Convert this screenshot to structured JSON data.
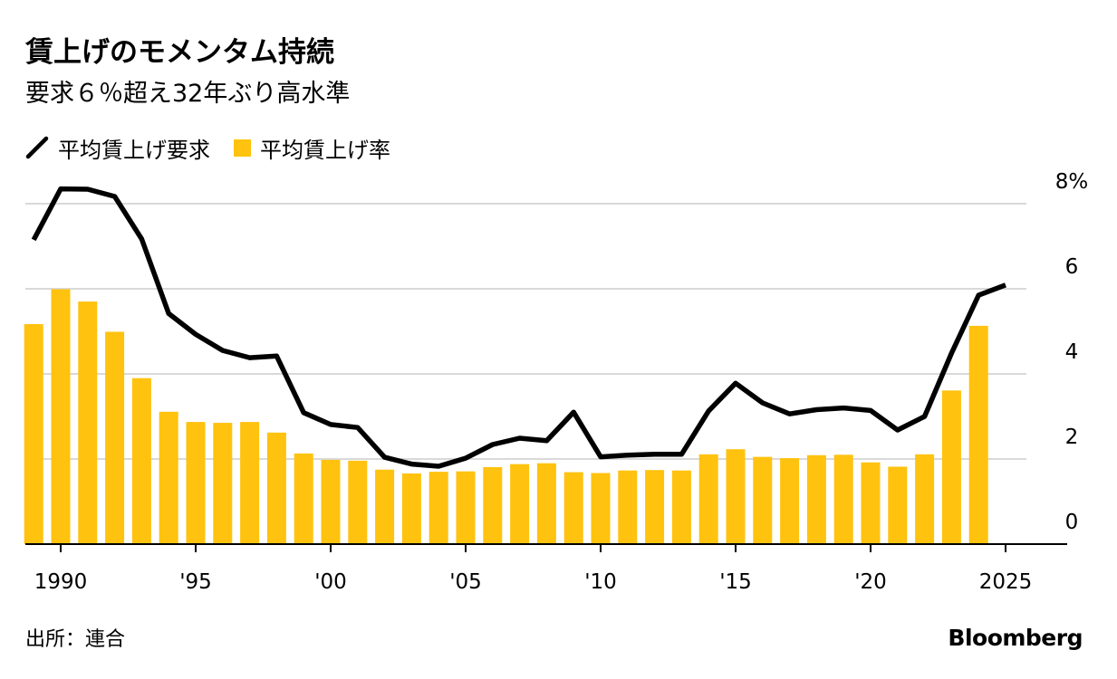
{
  "title": "賃上げのモメンタム持続",
  "subtitle": "要求６％超え32年ぶり高水準",
  "legend": {
    "line_label": "平均賃上げ要求",
    "bar_label": "平均賃上げ率"
  },
  "source": "出所：連合",
  "brand": "Bloomberg",
  "colors": {
    "bar": "#FFC20E",
    "line": "#000000",
    "grid": "#d9d9d9"
  },
  "chart_data": {
    "type": "bar",
    "title": "賃上げのモメンタム持続",
    "subtitle": "要求６％超え32年ぶり高水準",
    "xlabel": "",
    "ylabel": "",
    "ylim": [
      0,
      8
    ],
    "y_ticks": [
      0,
      2,
      4,
      6,
      8
    ],
    "y_tick_labels": [
      "0",
      "2",
      "4",
      "6",
      "8%"
    ],
    "x_range": [
      1989,
      2025
    ],
    "x_ticks": [
      1990,
      1995,
      2000,
      2005,
      2010,
      2015,
      2020,
      2025
    ],
    "x_tick_labels": [
      "1990",
      "'95",
      "'00",
      "'05",
      "'10",
      "'15",
      "'20",
      "2025"
    ],
    "grid": true,
    "legend_position": "top-left",
    "series": [
      {
        "name": "平均賃上げ率",
        "type": "bar",
        "x": [
          1989,
          1990,
          1991,
          1992,
          1993,
          1994,
          1995,
          1996,
          1997,
          1998,
          1999,
          2000,
          2001,
          2002,
          2003,
          2004,
          2005,
          2006,
          2007,
          2008,
          2009,
          2010,
          2011,
          2012,
          2013,
          2014,
          2015,
          2016,
          2017,
          2018,
          2019,
          2020,
          2021,
          2022,
          2023,
          2024
        ],
        "values": [
          5.17,
          5.99,
          5.7,
          4.99,
          3.9,
          3.11,
          2.87,
          2.85,
          2.87,
          2.62,
          2.13,
          1.98,
          1.96,
          1.75,
          1.66,
          1.7,
          1.71,
          1.81,
          1.88,
          1.9,
          1.69,
          1.67,
          1.73,
          1.74,
          1.73,
          2.11,
          2.23,
          2.05,
          2.02,
          2.09,
          2.1,
          1.92,
          1.82,
          2.11,
          3.61,
          5.13
        ]
      },
      {
        "name": "平均賃上げ要求",
        "type": "line",
        "x": [
          1989,
          1990,
          1991,
          1992,
          1993,
          1994,
          1995,
          1996,
          1997,
          1998,
          1999,
          2000,
          2001,
          2002,
          2003,
          2004,
          2005,
          2006,
          2007,
          2008,
          2009,
          2010,
          2011,
          2012,
          2013,
          2014,
          2015,
          2016,
          2017,
          2018,
          2019,
          2020,
          2021,
          2022,
          2023,
          2024,
          2025
        ],
        "values": [
          7.15,
          8.35,
          8.34,
          8.17,
          7.17,
          5.42,
          4.93,
          4.55,
          4.38,
          4.42,
          3.09,
          2.81,
          2.74,
          2.04,
          1.88,
          1.83,
          2.02,
          2.34,
          2.49,
          2.43,
          3.1,
          2.05,
          2.09,
          2.11,
          2.11,
          3.13,
          3.78,
          3.32,
          3.06,
          3.16,
          3.2,
          3.14,
          2.68,
          3.0,
          4.49,
          5.85,
          6.09
        ]
      }
    ]
  }
}
